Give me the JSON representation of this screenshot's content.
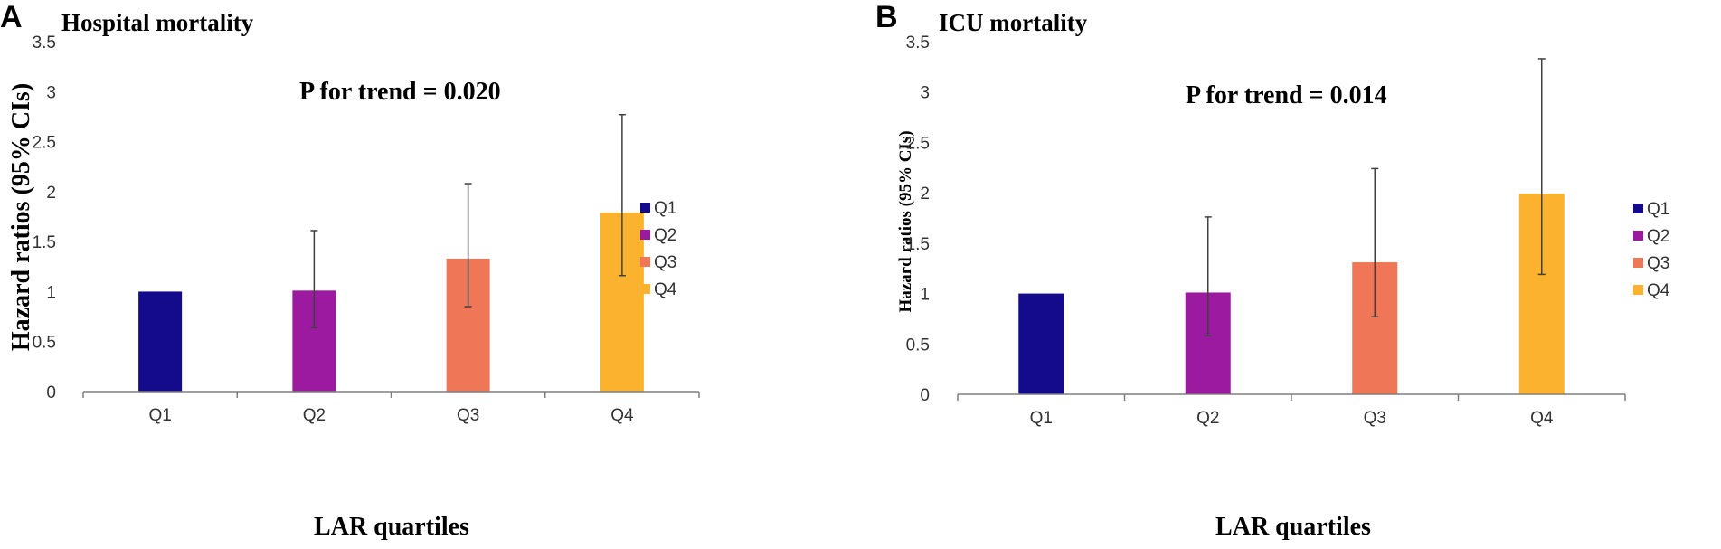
{
  "chart_data": [
    {
      "panel": "A",
      "type": "bar",
      "title": "Hospital mortality",
      "annotation": "P for trend = 0.020",
      "xlabel": "LAR quartiles",
      "ylabel": "Hazard ratios (95% CIs)",
      "ylim": [
        0,
        3.5
      ],
      "yticks": [
        "0",
        "0.5",
        "1",
        "1.5",
        "2",
        "2.5",
        "3",
        "3.5"
      ],
      "categories": [
        "Q1",
        "Q2",
        "Q3",
        "Q4"
      ],
      "values": [
        1.0,
        1.01,
        1.33,
        1.79
      ],
      "ci_lower": [
        1.0,
        0.64,
        0.85,
        1.16
      ],
      "ci_upper": [
        1.0,
        1.61,
        2.08,
        2.77
      ],
      "colors": [
        "#140a8c",
        "#9c1aa0",
        "#ef7757",
        "#fbb32f"
      ],
      "legend": [
        "Q1",
        "Q2",
        "Q3",
        "Q4"
      ],
      "legend_position": "right",
      "grid": false
    },
    {
      "panel": "B",
      "type": "bar",
      "title": "ICU mortality",
      "annotation": "P for trend = 0.014",
      "xlabel": "LAR quartiles",
      "ylabel": "Hazard ratios (95% CIs)",
      "ylim": [
        0,
        3.5
      ],
      "yticks": [
        "0",
        "0.5",
        "1",
        "1.5",
        "2",
        "2.5",
        "3",
        "3.5"
      ],
      "categories": [
        "Q1",
        "Q2",
        "Q3",
        "Q4"
      ],
      "values": [
        1.0,
        1.01,
        1.31,
        1.99
      ],
      "ci_lower": [
        1.0,
        0.58,
        0.77,
        1.19
      ],
      "ci_upper": [
        1.0,
        1.76,
        2.24,
        3.33
      ],
      "colors": [
        "#140a8c",
        "#9c1aa0",
        "#ef7757",
        "#fbb32f"
      ],
      "legend": [
        "Q1",
        "Q2",
        "Q3",
        "Q4"
      ],
      "legend_position": "right",
      "grid": false
    }
  ]
}
